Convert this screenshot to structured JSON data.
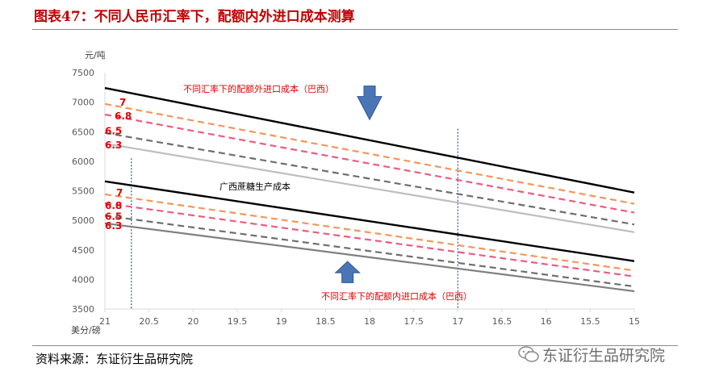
{
  "header": {
    "title": "图表47：不同人民币汇率下，配额内外进口成本测算"
  },
  "footer": {
    "source": "资料来源：东证衍生品研究院",
    "watermark": "东证衍生品研究院"
  },
  "chart_data": {
    "type": "line",
    "y_unit": "元/吨",
    "x_unit": "美分/磅",
    "x": [
      21,
      20.5,
      20,
      19.5,
      19,
      18.5,
      18,
      17.5,
      17,
      16.5,
      16,
      15.5,
      15
    ],
    "xlim": [
      21,
      15
    ],
    "ylim": [
      3500,
      7500
    ],
    "yticks": [
      3500,
      4000,
      4500,
      5000,
      5500,
      6000,
      6500,
      7000,
      7500
    ],
    "xtick_labels": [
      "21",
      "20.5",
      "20",
      "19.5",
      "19",
      "18.5",
      "18",
      "17.5",
      "17",
      "16.5",
      "16",
      "15.5",
      "15"
    ],
    "ytick_labels": [
      "3500",
      "4000",
      "4500",
      "5000",
      "5500",
      "6000",
      "6500",
      "7000",
      "7500"
    ],
    "grid": false,
    "series": [
      {
        "group": "outside",
        "rate": "",
        "color": "#000000",
        "dash": "solid",
        "start": 7240,
        "end": 5470
      },
      {
        "group": "outside",
        "rate": "7",
        "color": "#f4965a",
        "dash": "dashed",
        "start": 6970,
        "end": 5280
      },
      {
        "group": "outside",
        "rate": "6.8",
        "color": "#ef5a82",
        "dash": "dashed",
        "start": 6790,
        "end": 5130
      },
      {
        "group": "outside",
        "rate": "6.5",
        "color": "#6e6e6e",
        "dash": "dashed",
        "start": 6480,
        "end": 4930
      },
      {
        "group": "outside",
        "rate": "6.3",
        "color": "#bebebe",
        "dash": "solid",
        "start": 6300,
        "end": 4800
      },
      {
        "group": "inside",
        "rate": "",
        "color": "#000000",
        "dash": "solid",
        "start": 5660,
        "end": 4310
      },
      {
        "group": "inside",
        "rate": "7",
        "color": "#f4965a",
        "dash": "dashed",
        "start": 5440,
        "end": 4150
      },
      {
        "group": "inside",
        "rate": "6.8",
        "color": "#ef5a82",
        "dash": "dashed",
        "start": 5290,
        "end": 4050
      },
      {
        "group": "inside",
        "rate": "6.5",
        "color": "#6e6e6e",
        "dash": "dashed",
        "start": 5080,
        "end": 3880
      },
      {
        "group": "inside",
        "rate": "6.3",
        "color": "#7f7f7f",
        "dash": "solid",
        "start": 4950,
        "end": 3800
      }
    ],
    "rate_label_color": "#e00000",
    "annotations": {
      "outside_label": "不同汇率下的配额外进口成本（巴西）",
      "inside_label": "不同汇率下的配额内进口成本（巴西）",
      "guangxi_label": "广西蔗糖生产成本",
      "guangxi_x": 20.7,
      "guangxi_y_range": [
        3500,
        6050
      ],
      "ref_x": 17,
      "ref_y_range": [
        3500,
        6550
      ],
      "arrow_color": "#4a76b5",
      "arrow_down_x": 18.0,
      "arrow_down_y": [
        7000,
        6800
      ],
      "arrow_up_x": 18.25,
      "arrow_up_y": [
        4250,
        4000
      ]
    }
  }
}
